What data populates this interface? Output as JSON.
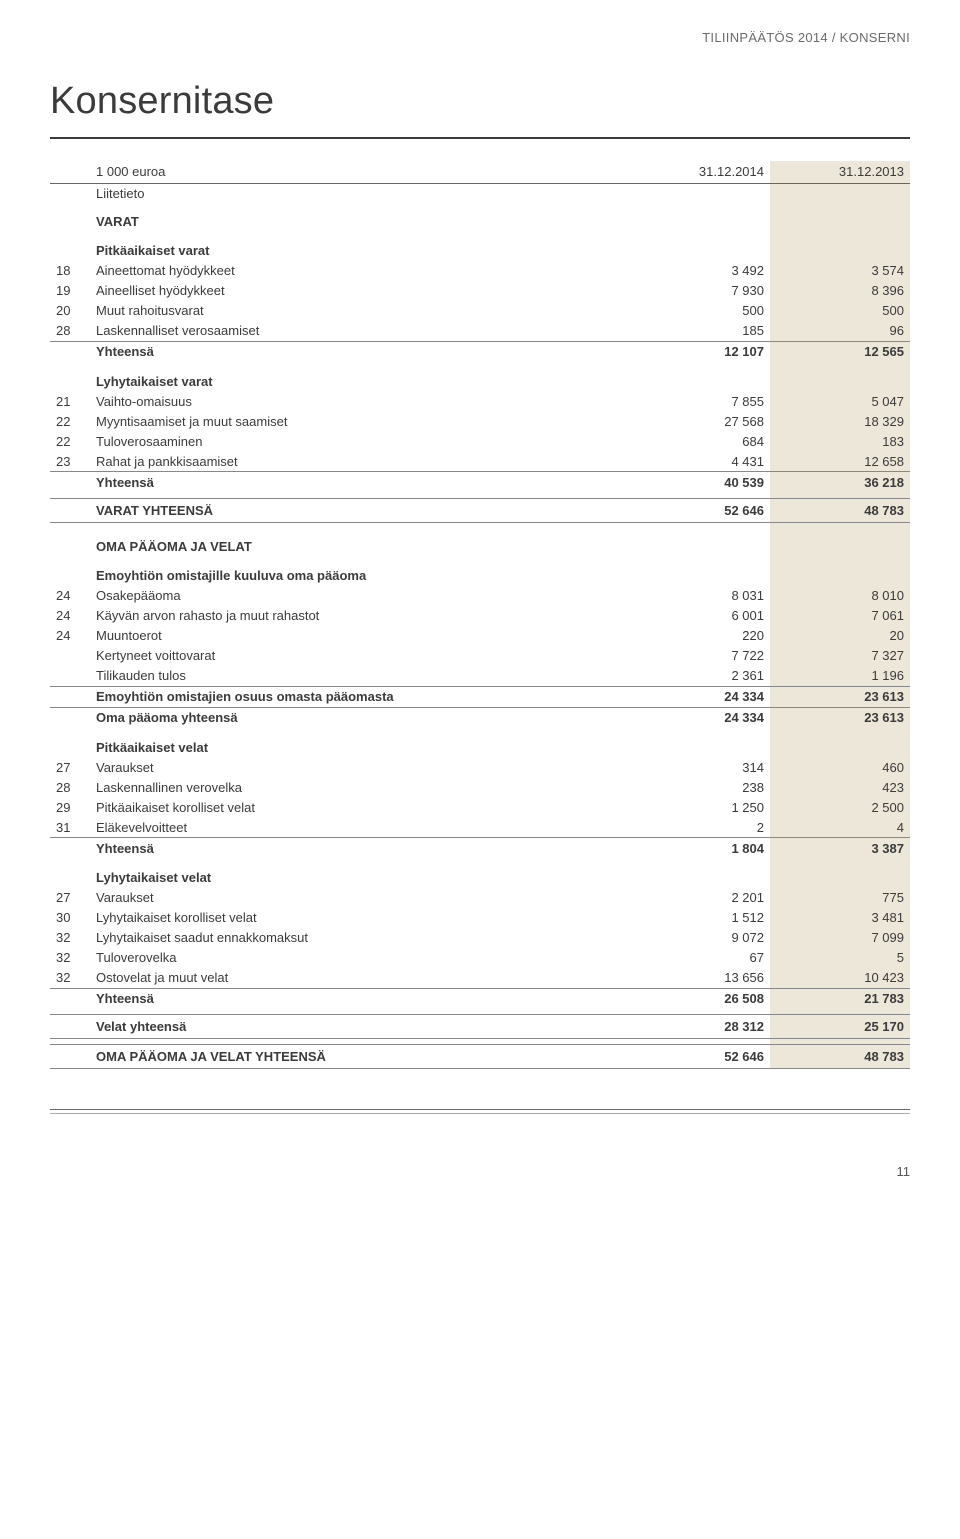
{
  "header_right": "TILIINPÄÄTÖS 2014 / KONSERNI",
  "title": "Konsernitase",
  "t": {
    "columns": [
      "1 000 euroa",
      "31.12.2014",
      "31.12.2013"
    ],
    "liitetieto": "Liitetieto",
    "sec_varat": "VARAT",
    "sub_pitka_varat": "Pitkäaikaiset varat",
    "r_aineettomat": {
      "n": "18",
      "l": "Aineettomat hyödykkeet",
      "a": "3 492",
      "b": "3 574"
    },
    "r_aineelliset": {
      "n": "19",
      "l": "Aineelliset hyödykkeet",
      "a": "7 930",
      "b": "8 396"
    },
    "r_muut_rahoitus": {
      "n": "20",
      "l": "Muut rahoitusvarat",
      "a": "500",
      "b": "500"
    },
    "r_lask_vero": {
      "n": "28",
      "l": "Laskennalliset verosaamiset",
      "a": "185",
      "b": "96"
    },
    "r_yht_pitka": {
      "n": "",
      "l": "Yhteensä",
      "a": "12 107",
      "b": "12 565"
    },
    "sub_lyhyt_varat": "Lyhytaikaiset varat",
    "r_vaihto": {
      "n": "21",
      "l": "Vaihto-omaisuus",
      "a": "7 855",
      "b": "5 047"
    },
    "r_myynti": {
      "n": "22",
      "l": "Myyntisaamiset ja muut saamiset",
      "a": "27 568",
      "b": "18 329"
    },
    "r_tulovero_s": {
      "n": "22",
      "l": "Tuloverosaaminen",
      "a": "684",
      "b": "183"
    },
    "r_rahat": {
      "n": "23",
      "l": "Rahat ja pankkisaamiset",
      "a": "4 431",
      "b": "12 658"
    },
    "r_yht_lyhyt": {
      "n": "",
      "l": "Yhteensä",
      "a": "40 539",
      "b": "36 218"
    },
    "r_varat_yht": {
      "n": "",
      "l": "VARAT YHTEENSÄ",
      "a": "52 646",
      "b": "48 783"
    },
    "sec_oma": "OMA PÄÄOMA JA VELAT",
    "sub_emoyhtio": "Emoyhtiön omistajille kuuluva oma pääoma",
    "r_osake": {
      "n": "24",
      "l": "Osakepääoma",
      "a": "8 031",
      "b": "8 010"
    },
    "r_kayvan": {
      "n": "24",
      "l": "Käyvän arvon rahasto ja muut rahastot",
      "a": "6 001",
      "b": "7 061"
    },
    "r_muunto": {
      "n": "24",
      "l": "Muuntoerot",
      "a": "220",
      "b": "20"
    },
    "r_kertyneet": {
      "n": "",
      "l": "Kertyneet voittovarat",
      "a": "7 722",
      "b": "7 327"
    },
    "r_tilikausi": {
      "n": "",
      "l": "Tilikauden tulos",
      "a": "2 361",
      "b": "1 196"
    },
    "r_emo_osuus": {
      "n": "",
      "l": "Emoyhtiön omistajien osuus omasta pääomasta",
      "a": "24 334",
      "b": "23 613"
    },
    "r_oma_yht": {
      "n": "",
      "l": "Oma pääoma yhteensä",
      "a": "24 334",
      "b": "23 613"
    },
    "sub_pitka_velat": "Pitkäaikaiset velat",
    "r_varaukset_p": {
      "n": "27",
      "l": "Varaukset",
      "a": "314",
      "b": "460"
    },
    "r_lask_velka": {
      "n": "28",
      "l": "Laskennallinen verovelka",
      "a": "238",
      "b": "423"
    },
    "r_pitka_korol": {
      "n": "29",
      "l": "Pitkäaikaiset korolliset velat",
      "a": "1 250",
      "b": "2 500"
    },
    "r_elake": {
      "n": "31",
      "l": "Eläkevelvoitteet",
      "a": "2",
      "b": "4"
    },
    "r_yht_pvelat": {
      "n": "",
      "l": "Yhteensä",
      "a": "1 804",
      "b": "3 387"
    },
    "sub_lyhyt_velat": "Lyhytaikaiset velat",
    "r_varaukset_l": {
      "n": "27",
      "l": "Varaukset",
      "a": "2 201",
      "b": "775"
    },
    "r_lyhyt_korol": {
      "n": "30",
      "l": "Lyhytaikaiset korolliset velat",
      "a": "1 512",
      "b": "3 481"
    },
    "r_lyhyt_ennakko": {
      "n": "32",
      "l": "Lyhytaikaiset saadut ennakkomaksut",
      "a": "9 072",
      "b": "7 099"
    },
    "r_tulovelka": {
      "n": "32",
      "l": "Tuloverovelka",
      "a": "67",
      "b": "5"
    },
    "r_ostovelat": {
      "n": "32",
      "l": "Ostovelat ja muut velat",
      "a": "13 656",
      "b": "10 423"
    },
    "r_yht_lvelat": {
      "n": "",
      "l": "Yhteensä",
      "a": "26 508",
      "b": "21 783"
    },
    "r_velat_yht": {
      "n": "",
      "l": "Velat yhteensä",
      "a": "28 312",
      "b": "25 170"
    },
    "r_oma_velat_yht": {
      "n": "",
      "l": "OMA PÄÄOMA JA VELAT YHTEENSÄ",
      "a": "52 646",
      "b": "48 783"
    }
  },
  "page_number": "11",
  "colors": {
    "text": "#3b3b3b",
    "muted": "#6b6b6b",
    "shade": "#ede7da",
    "rule_dark": "#3b3b3b",
    "rule_mid": "#888888"
  }
}
